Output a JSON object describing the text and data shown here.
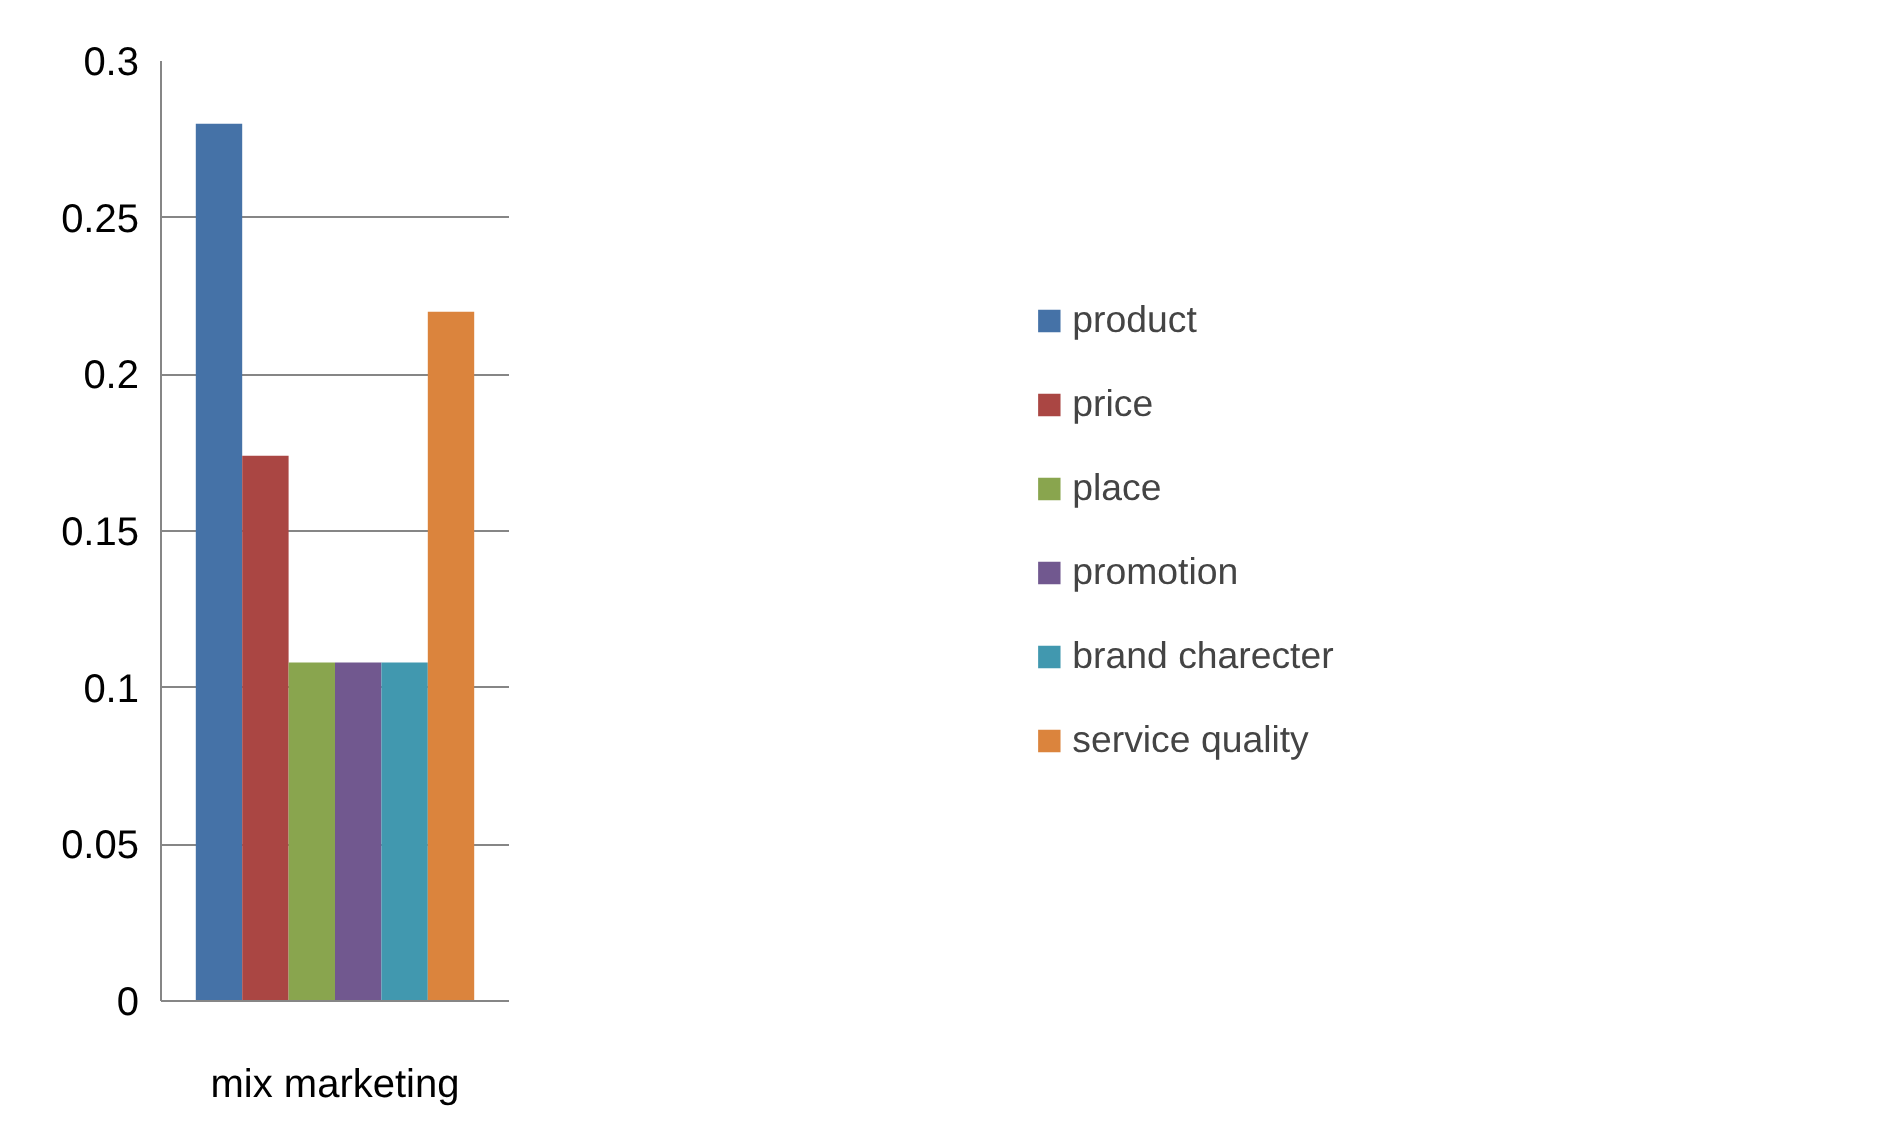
{
  "chart_data": {
    "type": "bar",
    "categories": [
      "mix marketing"
    ],
    "series": [
      {
        "name": "product",
        "color": "#4572a7",
        "values": [
          0.28
        ]
      },
      {
        "name": "price",
        "color": "#aa4643",
        "values": [
          0.174
        ]
      },
      {
        "name": "place",
        "color": "#89a54e",
        "values": [
          0.108
        ]
      },
      {
        "name": "promotion",
        "color": "#71588f",
        "values": [
          0.108
        ]
      },
      {
        "name": "brand charecter",
        "color": "#4198af",
        "values": [
          0.108
        ]
      },
      {
        "name": "service quality",
        "color": "#db843d",
        "values": [
          0.22
        ]
      }
    ],
    "ylim": [
      0,
      0.3
    ],
    "yticks": [
      0,
      0.05,
      0.1,
      0.15,
      0.2,
      0.25,
      0.3
    ],
    "grid": "y",
    "legend": "right"
  }
}
